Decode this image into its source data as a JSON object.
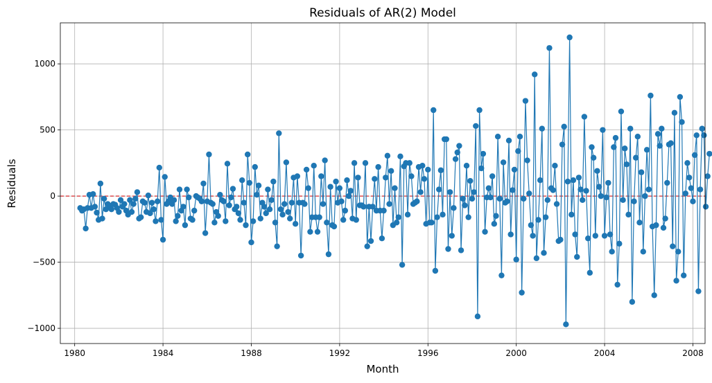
{
  "chart_data": {
    "type": "line",
    "title": "Residuals of AR(2) Model",
    "xlabel": "Month",
    "ylabel": "Residuals",
    "x_range": [
      1979.35,
      2008.55
    ],
    "ylim": [
      -1115,
      1310
    ],
    "x_ticks": [
      1980,
      1984,
      1988,
      1992,
      1996,
      2000,
      2004,
      2008
    ],
    "y_ticks": [
      -1000,
      -500,
      0,
      500,
      1000
    ],
    "tick_labels_y": [
      "−1000",
      "−500",
      "0",
      "500",
      "1000"
    ],
    "grid": true,
    "reference_line": {
      "y": 0,
      "color": "#d62728",
      "style": "dashed"
    },
    "series": [
      {
        "color": "#1f77b4",
        "marker": "circle",
        "start": 1980.25,
        "step": 0.08333,
        "values": [
          -90,
          -110,
          -100,
          -245,
          -90,
          10,
          -90,
          15,
          -80,
          -125,
          -180,
          95,
          -170,
          -20,
          -100,
          -60,
          -80,
          -100,
          -60,
          -65,
          -90,
          -120,
          -30,
          -80,
          -60,
          -110,
          -140,
          -30,
          -120,
          -60,
          -20,
          30,
          -170,
          -160,
          -40,
          -50,
          -120,
          5,
          -130,
          -50,
          -100,
          -190,
          -40,
          215,
          -180,
          -330,
          145,
          -60,
          -40,
          -10,
          -60,
          -30,
          -190,
          -150,
          50,
          -110,
          -80,
          -220,
          50,
          -10,
          -170,
          -180,
          -110,
          0,
          -10,
          -20,
          -40,
          95,
          -280,
          -40,
          315,
          -50,
          -60,
          -200,
          -120,
          -150,
          10,
          -30,
          -40,
          -190,
          245,
          -70,
          -10,
          55,
          -100,
          -80,
          -130,
          -180,
          120,
          -50,
          -220,
          315,
          100,
          -350,
          -190,
          220,
          10,
          80,
          -170,
          -50,
          -80,
          -130,
          50,
          -100,
          -30,
          110,
          -200,
          -380,
          475,
          -100,
          -140,
          -60,
          255,
          -120,
          -170,
          -50,
          140,
          -210,
          150,
          -50,
          -450,
          -50,
          -60,
          200,
          60,
          -270,
          -160,
          230,
          -160,
          -270,
          -160,
          150,
          -60,
          270,
          -200,
          -440,
          70,
          -220,
          -230,
          110,
          -50,
          60,
          -40,
          -180,
          -110,
          120,
          0,
          40,
          -170,
          250,
          -180,
          140,
          -70,
          -70,
          -80,
          250,
          -380,
          -80,
          -340,
          -80,
          130,
          -110,
          220,
          -110,
          -320,
          -110,
          140,
          305,
          -60,
          190,
          -220,
          60,
          -200,
          -160,
          300,
          -520,
          225,
          250,
          -140,
          250,
          150,
          -60,
          -50,
          -40,
          220,
          30,
          230,
          130,
          -210,
          200,
          -200,
          -200,
          650,
          -565,
          -160,
          50,
          195,
          -140,
          430,
          430,
          -400,
          30,
          -300,
          -90,
          280,
          330,
          380,
          -410,
          -20,
          -70,
          230,
          -160,
          115,
          -20,
          30,
          530,
          -910,
          650,
          210,
          320,
          -270,
          -10,
          60,
          -10,
          150,
          -210,
          -150,
          450,
          -20,
          -600,
          255,
          -50,
          -40,
          420,
          -290,
          45,
          200,
          -480,
          340,
          450,
          -730,
          -20,
          720,
          270,
          20,
          -220,
          -300,
          920,
          -470,
          -180,
          120,
          510,
          -430,
          -160,
          -30,
          1120,
          60,
          45,
          230,
          -60,
          -340,
          -330,
          390,
          525,
          -970,
          110,
          1200,
          -140,
          120,
          -290,
          -460,
          140,
          50,
          -30,
          600,
          40,
          -320,
          -580,
          370,
          290,
          -300,
          190,
          70,
          0,
          500,
          -300,
          -10,
          100,
          -290,
          -420,
          370,
          440,
          -670,
          -360,
          640,
          -30,
          360,
          240,
          -140,
          510,
          -800,
          -40,
          290,
          450,
          -200,
          180,
          -420,
          0,
          350,
          50,
          760,
          -230,
          -750,
          -220,
          470,
          380,
          510,
          -240,
          -170,
          100,
          390,
          400,
          -380,
          630,
          -640,
          -420,
          750,
          560,
          -600,
          20,
          250,
          140,
          60,
          -40,
          310,
          460,
          -720,
          50,
          510,
          460,
          -80,
          150,
          320
        ]
      }
    ]
  }
}
